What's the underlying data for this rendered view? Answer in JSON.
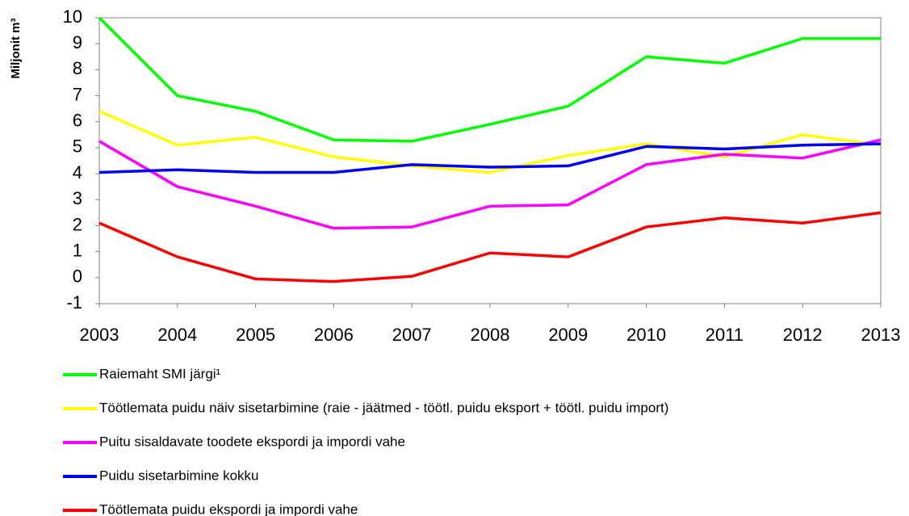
{
  "chart_data": {
    "type": "line",
    "y_label": "Miljonit m³",
    "categories": [
      "2003",
      "2004",
      "2005",
      "2006",
      "2007",
      "2008",
      "2009",
      "2010",
      "2011",
      "2012",
      "2013"
    ],
    "series": [
      {
        "name": "Raiemaht SMI järgi¹",
        "color": "#00ff00",
        "values": [
          10.0,
          7.0,
          6.4,
          5.3,
          5.25,
          5.9,
          6.6,
          8.5,
          8.25,
          9.2,
          9.2
        ]
      },
      {
        "name": "Töötlemata puidu näiv sisetarbimine (raie - jäätmed - töötl. puidu eksport + töötl. puidu import)",
        "color": "#ffff00",
        "values": [
          6.4,
          5.1,
          5.4,
          4.65,
          4.3,
          4.05,
          4.7,
          5.15,
          4.65,
          5.5,
          5.1
        ]
      },
      {
        "name": "Puitu sisaldavate toodete ekspordi ja impordi vahe",
        "color": "#ff00ff",
        "values": [
          5.25,
          3.5,
          2.75,
          1.9,
          1.95,
          2.75,
          2.8,
          4.35,
          4.75,
          4.6,
          5.3
        ]
      },
      {
        "name": "Puidu sisetarbimine kokku",
        "color": "#0000ff",
        "values": [
          4.05,
          4.15,
          4.05,
          4.05,
          4.35,
          4.25,
          4.3,
          5.05,
          4.95,
          5.1,
          5.15
        ]
      },
      {
        "name": "Töötlemata puidu ekspordi ja impordi vahe",
        "color": "#ff0000",
        "values": [
          2.1,
          0.8,
          -0.05,
          -0.15,
          0.05,
          0.95,
          0.8,
          1.95,
          2.3,
          2.1,
          2.5
        ]
      }
    ],
    "ylim": [
      -1,
      10
    ],
    "yticks": [
      -1,
      0,
      1,
      2,
      3,
      4,
      5,
      6,
      7,
      8,
      9,
      10
    ],
    "grid": false
  }
}
